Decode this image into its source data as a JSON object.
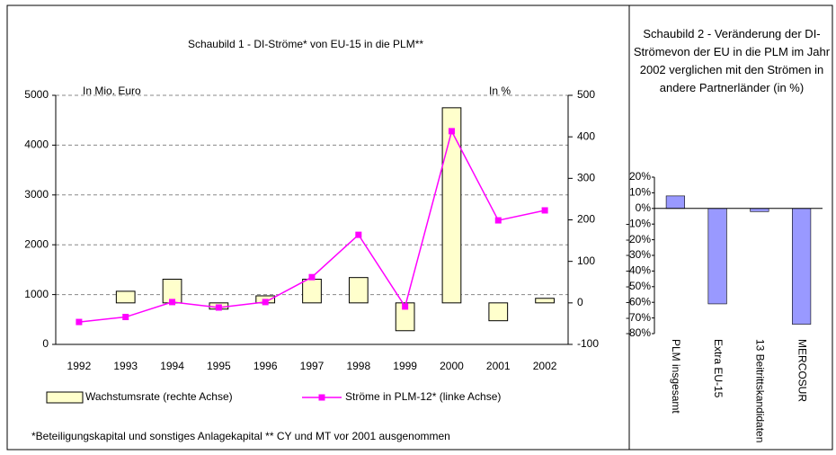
{
  "chart_data": [
    {
      "type": "combo",
      "title": "Schaubild 1 - DI-Ströme* von EU-15 in die PLM**",
      "ylabel": "In Mio. Euro",
      "y2label": "In %",
      "categories": [
        "1992",
        "1993",
        "1994",
        "1995",
        "1996",
        "1997",
        "1998",
        "1999",
        "2000",
        "2001",
        "2002"
      ],
      "series": [
        {
          "name": "Wachstumsrate (rechte Achse)",
          "type": "bar",
          "axis": "y2",
          "color": "#ffffcc",
          "values": [
            null,
            28,
            57,
            -15,
            17,
            57,
            61,
            -67,
            470,
            -43,
            11
          ]
        },
        {
          "name": "Ströme in PLM-12* (linke Achse)",
          "type": "line",
          "color": "#ff00ff",
          "values": [
            450,
            550,
            850,
            740,
            850,
            1350,
            2200,
            760,
            4280,
            2490,
            2690
          ]
        }
      ],
      "ylim": [
        0,
        5000
      ],
      "yticks": [
        0,
        1000,
        2000,
        3000,
        4000,
        5000
      ],
      "y2lim": [
        -100,
        500
      ],
      "y2ticks": [
        -100,
        0,
        100,
        200,
        300,
        400,
        500
      ],
      "grid": true,
      "legend": "bottom",
      "note": "*Beteiligungskapital und sonstiges Anlagekapital ** CY und MT vor 2001 ausgenommen"
    },
    {
      "type": "bar",
      "title": "Schaubild 2 - Veränderung der DI-Strömevon der EU in die PLM im Jahr 2002 verglichen mit den Strömen in andere Partnerländer (in %)",
      "categories": [
        "PLM insgesamt",
        "Extra EU-15",
        "13 Beitrittskandidaten",
        "MERCOSUR"
      ],
      "values": [
        8,
        -61,
        -2,
        -74
      ],
      "color": "#9999ff",
      "ylim": [
        -80,
        20
      ],
      "yticks": [
        {
          "value": -80,
          "label": "-80%"
        },
        {
          "value": -70,
          "label": "-70%"
        },
        {
          "value": -60,
          "label": "-60%"
        },
        {
          "value": -50,
          "label": "-50%"
        },
        {
          "value": -40,
          "label": "-40%"
        },
        {
          "value": -30,
          "label": "-30%"
        },
        {
          "value": -20,
          "label": "-20%"
        },
        {
          "value": -10,
          "label": "-10%"
        },
        {
          "value": 0,
          "label": "0%"
        },
        {
          "value": 10,
          "label": "10%"
        },
        {
          "value": 20,
          "label": "20%"
        }
      ],
      "grid": false
    }
  ]
}
